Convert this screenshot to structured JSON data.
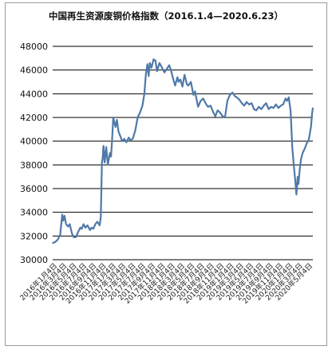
{
  "chart_data": {
    "type": "line",
    "title": "中国再生资源废铜价格指数（2016.1.4—2020.6.23）",
    "xlabel": "",
    "ylabel": "",
    "ylim": [
      30000,
      48000
    ],
    "yticks": [
      30000,
      32000,
      34000,
      36000,
      38000,
      40000,
      42000,
      44000,
      46000,
      48000
    ],
    "grid": true,
    "legend": "none",
    "line_color": "#4f79a8",
    "x_tick_labels": [
      "2016年1月4日",
      "2016年3月4日",
      "2016年5月4日",
      "2016年7月4日",
      "2016年9月4日",
      "2016年11月4日",
      "2017年1月4日",
      "2017年3月4日",
      "2017年5月4日",
      "2017年7月4日",
      "2017年9月4日",
      "2017年11月4日",
      "2018年1月4日",
      "2018年3月4日",
      "2018年5月4日",
      "2018年7月4日",
      "2018年9月4日",
      "2018年11月4日",
      "2019年1月4日",
      "2019年3月4日",
      "2019年5月4日",
      "2019年7月4日",
      "2019年9月4日",
      "2019年11月4日",
      "2020年1月4日",
      "2020年3月4日",
      "2020年5月4日"
    ],
    "series": [
      {
        "x": [
          "2016-01-04",
          "2016-01-20",
          "2016-02-05",
          "2016-02-20",
          "2016-03-04",
          "2016-03-10",
          "2016-03-18",
          "2016-03-28",
          "2016-04-10",
          "2016-04-20",
          "2016-05-04",
          "2016-05-15",
          "2016-05-28",
          "2016-06-10",
          "2016-06-25",
          "2016-07-04",
          "2016-07-15",
          "2016-07-28",
          "2016-08-10",
          "2016-08-25",
          "2016-09-04",
          "2016-09-15",
          "2016-09-28",
          "2016-10-10",
          "2016-10-25",
          "2016-11-01",
          "2016-11-04",
          "2016-11-08",
          "2016-11-12",
          "2016-11-18",
          "2016-11-25",
          "2016-12-05",
          "2016-12-15",
          "2016-12-28",
          "2017-01-04",
          "2017-01-10",
          "2017-01-18",
          "2017-02-01",
          "2017-02-10",
          "2017-02-20",
          "2017-03-04",
          "2017-03-15",
          "2017-03-28",
          "2017-04-10",
          "2017-04-25",
          "2017-05-04",
          "2017-05-20",
          "2017-06-05",
          "2017-06-20",
          "2017-07-04",
          "2017-07-20",
          "2017-08-01",
          "2017-08-10",
          "2017-08-20",
          "2017-08-28",
          "2017-09-04",
          "2017-09-15",
          "2017-09-28",
          "2017-10-10",
          "2017-10-20",
          "2017-11-04",
          "2017-11-20",
          "2017-12-05",
          "2017-12-20",
          "2018-01-04",
          "2018-01-15",
          "2018-01-28",
          "2018-02-10",
          "2018-02-25",
          "2018-03-04",
          "2018-03-15",
          "2018-03-28",
          "2018-04-10",
          "2018-04-25",
          "2018-05-04",
          "2018-05-20",
          "2018-06-05",
          "2018-06-15",
          "2018-06-25",
          "2018-07-04",
          "2018-07-20",
          "2018-08-05",
          "2018-08-20",
          "2018-09-04",
          "2018-09-20",
          "2018-10-05",
          "2018-10-20",
          "2018-11-04",
          "2018-11-20",
          "2018-12-05",
          "2018-12-20",
          "2019-01-04",
          "2019-01-20",
          "2019-02-05",
          "2019-02-20",
          "2019-03-04",
          "2019-03-20",
          "2019-04-05",
          "2019-04-20",
          "2019-05-04",
          "2019-05-20",
          "2019-06-05",
          "2019-06-20",
          "2019-07-04",
          "2019-07-20",
          "2019-08-05",
          "2019-08-20",
          "2019-09-04",
          "2019-09-20",
          "2019-10-05",
          "2019-10-20",
          "2019-11-04",
          "2019-11-20",
          "2019-12-05",
          "2019-12-20",
          "2020-01-04",
          "2020-01-14",
          "2020-01-24",
          "2020-02-05",
          "2020-02-15",
          "2020-02-25",
          "2020-03-04",
          "2020-03-12",
          "2020-03-20",
          "2020-03-25",
          "2020-04-01",
          "2020-04-10",
          "2020-04-20",
          "2020-05-04",
          "2020-05-15",
          "2020-05-28",
          "2020-06-05",
          "2020-06-12",
          "2020-06-18",
          "2020-06-23"
        ],
        "values": [
          31400,
          31500,
          31700,
          32100,
          33800,
          33300,
          33700,
          33000,
          32800,
          33000,
          32200,
          31900,
          31900,
          32300,
          32700,
          32600,
          33000,
          32700,
          32900,
          32500,
          32700,
          32600,
          33000,
          33200,
          32900,
          33600,
          35500,
          38200,
          38500,
          39600,
          38200,
          39500,
          38000,
          39000,
          38700,
          39900,
          42000,
          41200,
          41800,
          40800,
          40400,
          40000,
          40200,
          39900,
          40300,
          40100,
          40200,
          40900,
          42000,
          42400,
          43000,
          44000,
          45600,
          46500,
          45500,
          46600,
          46200,
          46900,
          46800,
          45900,
          46600,
          46200,
          45800,
          46100,
          46400,
          46000,
          45300,
          44700,
          45400,
          45000,
          45200,
          44600,
          45600,
          44800,
          44700,
          45000,
          43900,
          44200,
          43500,
          42900,
          43400,
          43600,
          43200,
          42900,
          43000,
          42500,
          42100,
          42600,
          42400,
          42100,
          42000,
          43400,
          43900,
          44100,
          43800,
          43700,
          43500,
          43200,
          43000,
          43300,
          43100,
          43200,
          42700,
          42600,
          42900,
          42700,
          43000,
          43200,
          42700,
          42900,
          42800,
          43100,
          42800,
          43000,
          43100,
          43600,
          43400,
          43700,
          42500,
          39500,
          37900,
          36800,
          35500,
          37000,
          36400,
          37500,
          38500,
          39000,
          39400,
          39800,
          40100,
          40700,
          41300,
          42300,
          42800
        ]
      }
    ]
  }
}
